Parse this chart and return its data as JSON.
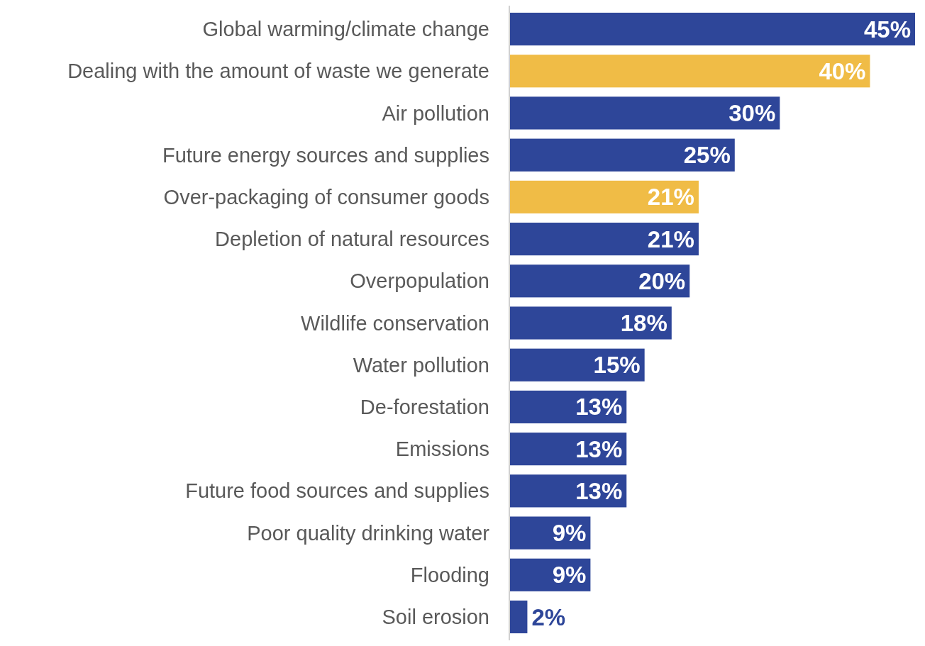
{
  "chart_data": {
    "type": "bar",
    "orientation": "horizontal",
    "categories": [
      "Global warming/climate change",
      "Dealing with the amount of waste we generate",
      "Air pollution",
      "Future energy sources and supplies",
      "Over-packaging of consumer goods",
      "Depletion of natural resources",
      "Overpopulation",
      "Wildlife conservation",
      "Water pollution",
      "De-forestation",
      "Emissions",
      "Future food sources and supplies",
      "Poor quality drinking water",
      "Flooding",
      "Soil erosion"
    ],
    "values": [
      45,
      40,
      30,
      25,
      21,
      21,
      20,
      18,
      15,
      13,
      13,
      13,
      9,
      9,
      2
    ],
    "colors": [
      "#2e4699",
      "#f0bc46",
      "#2e4699",
      "#2e4699",
      "#f0bc46",
      "#2e4699",
      "#2e4699",
      "#2e4699",
      "#2e4699",
      "#2e4699",
      "#2e4699",
      "#2e4699",
      "#2e4699",
      "#2e4699",
      "#2e4699"
    ],
    "value_labels": [
      "45%",
      "40%",
      "30%",
      "25%",
      "21%",
      "21%",
      "20%",
      "18%",
      "15%",
      "13%",
      "13%",
      "13%",
      "9%",
      "9%",
      "2%"
    ],
    "xlim": [
      0,
      45
    ],
    "tick_labels": "y"
  }
}
